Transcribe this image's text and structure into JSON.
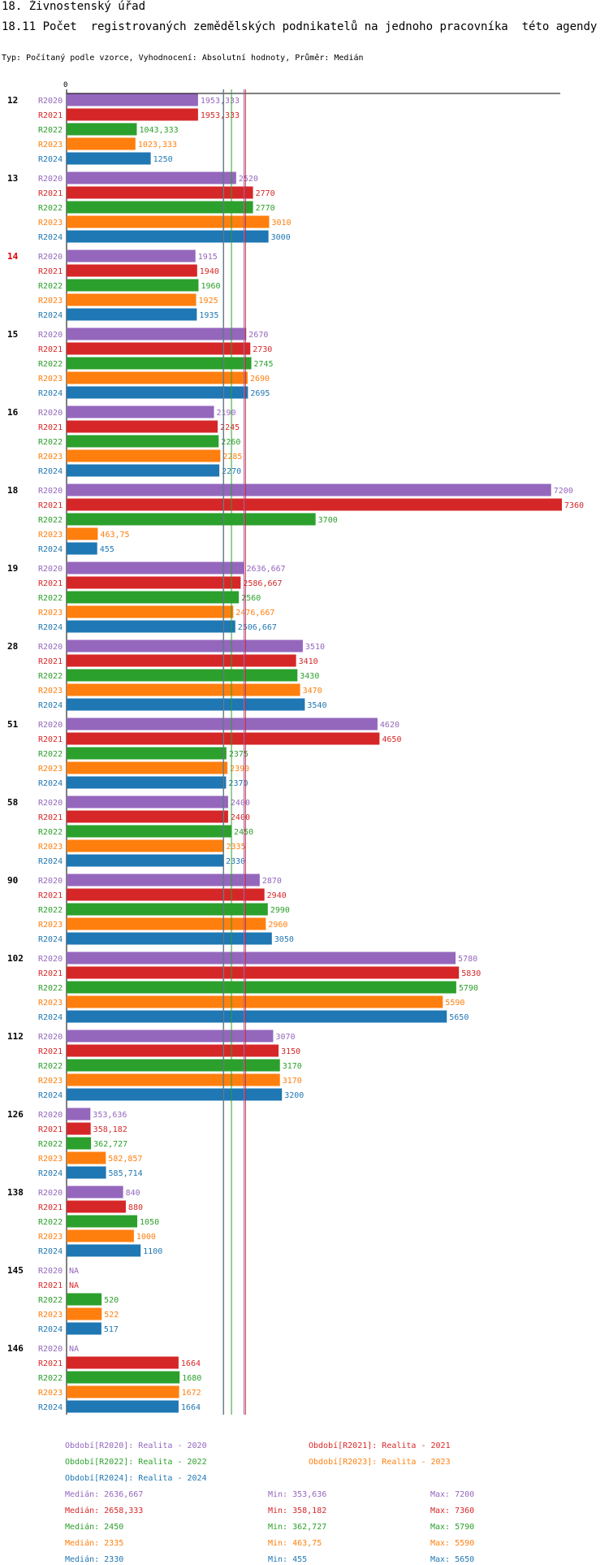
{
  "header": {
    "title": "18. Živnostenský úřad",
    "subtitle": "18.11 Počet  registrovaných zemědělských podnikatelů na jednoho pracovníka  této agendy",
    "info": "Typ: Počítaný podle vzorce, Vyhodnocení: Absolutní hodnoty, Průměr: Medián"
  },
  "chart_data": {
    "type": "bar",
    "orientation": "horizontal",
    "axis_zero_label": "0",
    "xlim": [
      0,
      7360
    ],
    "series": [
      {
        "name": "R2020",
        "color": "#9467bd"
      },
      {
        "name": "R2021",
        "color": "#d62728"
      },
      {
        "name": "R2022",
        "color": "#2ca02c"
      },
      {
        "name": "R2023",
        "color": "#ff7f0e"
      },
      {
        "name": "R2024",
        "color": "#1f77b4"
      }
    ],
    "groups": [
      {
        "label": "12",
        "highlight": false,
        "values": [
          1953.333,
          1953.333,
          1043.333,
          1023.333,
          1250
        ],
        "labels": [
          "1953,333",
          "1953,333",
          "1043,333",
          "1023,333",
          "1250"
        ]
      },
      {
        "label": "13",
        "highlight": false,
        "values": [
          2520,
          2770,
          2770,
          3010,
          3000
        ],
        "labels": [
          "2520",
          "2770",
          "2770",
          "3010",
          "3000"
        ]
      },
      {
        "label": "14",
        "highlight": true,
        "values": [
          1915,
          1940,
          1960,
          1925,
          1935
        ],
        "labels": [
          "1915",
          "1940",
          "1960",
          "1925",
          "1935"
        ]
      },
      {
        "label": "15",
        "highlight": false,
        "values": [
          2670,
          2730,
          2745,
          2690,
          2695
        ],
        "labels": [
          "2670",
          "2730",
          "2745",
          "2690",
          "2695"
        ]
      },
      {
        "label": "16",
        "highlight": false,
        "values": [
          2190,
          2245,
          2260,
          2285,
          2270
        ],
        "labels": [
          "2190",
          "2245",
          "2260",
          "2285",
          "2270"
        ]
      },
      {
        "label": "18",
        "highlight": false,
        "values": [
          7200,
          7360,
          3700,
          463.75,
          455
        ],
        "labels": [
          "7200",
          "7360",
          "3700",
          "463,75",
          "455"
        ]
      },
      {
        "label": "19",
        "highlight": false,
        "values": [
          2636.667,
          2586.667,
          2560,
          2476.667,
          2506.667
        ],
        "labels": [
          "2636,667",
          "2586,667",
          "2560",
          "2476,667",
          "2506,667"
        ]
      },
      {
        "label": "28",
        "highlight": false,
        "values": [
          3510,
          3410,
          3430,
          3470,
          3540
        ],
        "labels": [
          "3510",
          "3410",
          "3430",
          "3470",
          "3540"
        ]
      },
      {
        "label": "51",
        "highlight": false,
        "values": [
          4620,
          4650,
          2375,
          2390,
          2370
        ],
        "labels": [
          "4620",
          "4650",
          "2375",
          "2390",
          "2370"
        ]
      },
      {
        "label": "58",
        "highlight": false,
        "values": [
          2400,
          2400,
          2450,
          2335,
          2330
        ],
        "labels": [
          "2400",
          "2400",
          "2450",
          "2335",
          "2330"
        ]
      },
      {
        "label": "90",
        "highlight": false,
        "values": [
          2870,
          2940,
          2990,
          2960,
          3050
        ],
        "labels": [
          "2870",
          "2940",
          "2990",
          "2960",
          "3050"
        ]
      },
      {
        "label": "102",
        "highlight": false,
        "values": [
          5780,
          5830,
          5790,
          5590,
          5650
        ],
        "labels": [
          "5780",
          "5830",
          "5790",
          "5590",
          "5650"
        ]
      },
      {
        "label": "112",
        "highlight": false,
        "values": [
          3070,
          3150,
          3170,
          3170,
          3200
        ],
        "labels": [
          "3070",
          "3150",
          "3170",
          "3170",
          "3200"
        ]
      },
      {
        "label": "126",
        "highlight": false,
        "values": [
          353.636,
          358.182,
          362.727,
          582.857,
          585.714
        ],
        "labels": [
          "353,636",
          "358,182",
          "362,727",
          "582,857",
          "585,714"
        ]
      },
      {
        "label": "138",
        "highlight": false,
        "values": [
          840,
          880,
          1050,
          1000,
          1100
        ],
        "labels": [
          "840",
          "880",
          "1050",
          "1000",
          "1100"
        ]
      },
      {
        "label": "145",
        "highlight": false,
        "values": [
          null,
          null,
          520,
          522,
          517
        ],
        "labels": [
          "NA",
          "NA",
          "520",
          "522",
          "517"
        ]
      },
      {
        "label": "146",
        "highlight": false,
        "values": [
          null,
          1664,
          1680,
          1672,
          1664
        ],
        "labels": [
          "NA",
          "1664",
          "1680",
          "1672",
          "1664"
        ]
      }
    ],
    "medians": [
      2636.667,
      2658.333,
      2450,
      2335,
      2330
    ],
    "legend": [
      "Období[R2020]: Realita - 2020",
      "Období[R2021]: Realita - 2021",
      "Období[R2022]: Realita - 2022",
      "Období[R2023]: Realita - 2023",
      "Období[R2024]: Realita - 2024"
    ],
    "stats": [
      {
        "median": "Medián: 2636,667",
        "min": "Min: 353,636",
        "max": "Max: 7200"
      },
      {
        "median": "Medián: 2658,333",
        "min": "Min: 358,182",
        "max": "Max: 7360"
      },
      {
        "median": "Medián: 2450",
        "min": "Min: 362,727",
        "max": "Max: 5790"
      },
      {
        "median": "Medián: 2335",
        "min": "Min: 463,75",
        "max": "Max: 5590"
      },
      {
        "median": "Medián: 2330",
        "min": "Min: 455",
        "max": "Max: 5650"
      }
    ]
  }
}
